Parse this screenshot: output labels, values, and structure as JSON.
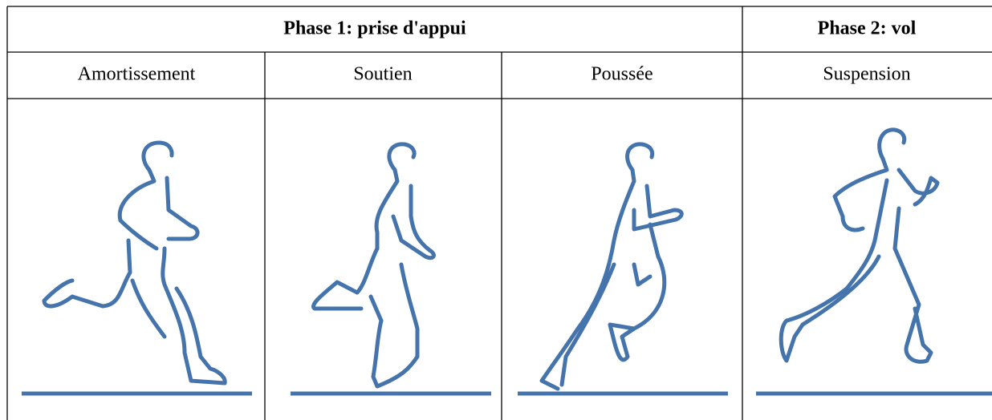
{
  "table": {
    "header": [
      "Phase 1: prise d'appui",
      "Phase 2: vol"
    ],
    "subheader": [
      "Amortissement",
      "Soutien",
      "Poussée",
      "Suspension"
    ]
  }
}
